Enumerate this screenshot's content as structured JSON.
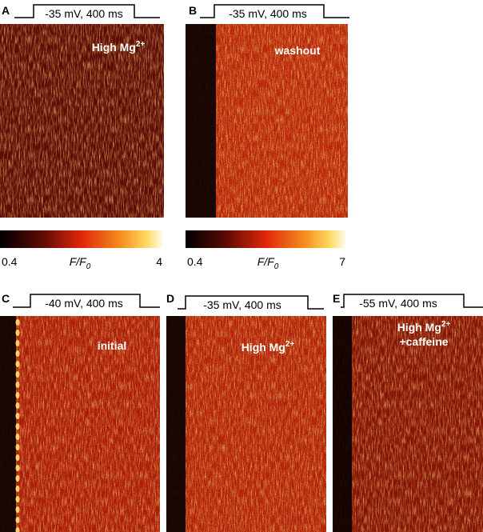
{
  "panels": [
    {
      "label": "A",
      "stimulus": "-35 mV, 400 ms",
      "annotation": [
        {
          "text": "High Mg",
          "sup": "2+"
        }
      ]
    },
    {
      "label": "B",
      "stimulus": "-35 mV, 400 ms",
      "annotation": [
        {
          "text": "washout"
        }
      ]
    },
    {
      "label": "C",
      "stimulus": "-40 mV, 400 ms",
      "annotation": [
        {
          "text": "initial"
        }
      ]
    },
    {
      "label": "D",
      "stimulus": "-35 mV, 400 ms",
      "annotation": [
        {
          "text": "High Mg",
          "sup": "2+"
        }
      ]
    },
    {
      "label": "E",
      "stimulus": "-55 mV, 400 ms",
      "annotation": [
        {
          "text": "High Mg",
          "sup": "2+"
        },
        {
          "text": "+caffeine"
        }
      ]
    }
  ],
  "colorbars": [
    {
      "min": 0.4,
      "label": {
        "text": "F/F",
        "sub": "0"
      },
      "max": 4
    },
    {
      "min": 0.4,
      "label": {
        "text": "F/F",
        "sub": "0"
      },
      "max": 7
    }
  ]
}
